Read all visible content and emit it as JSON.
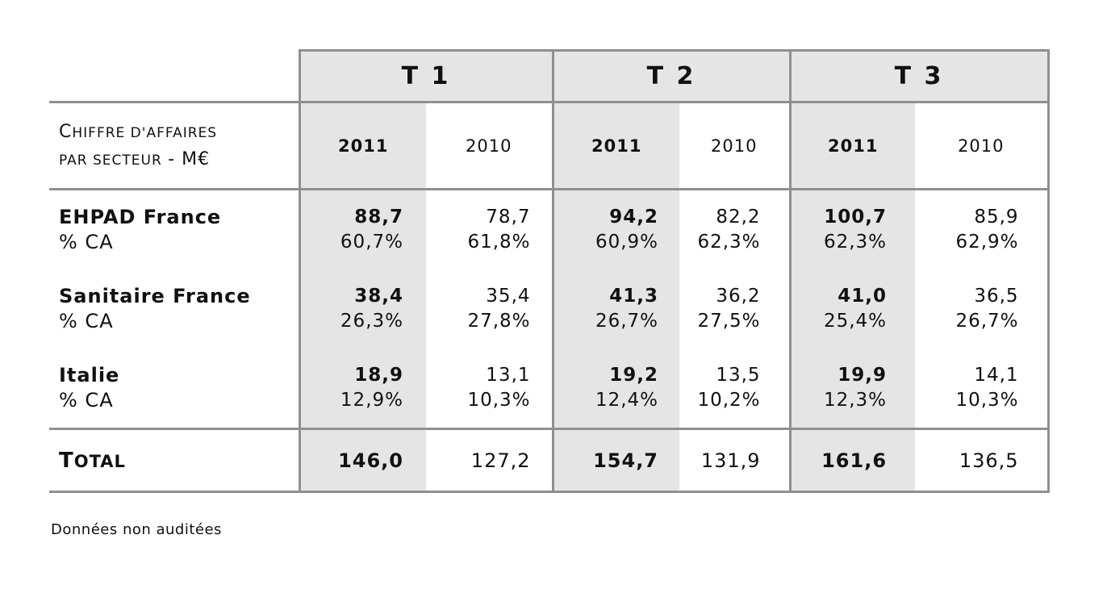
{
  "table": {
    "quarters": [
      "T 1",
      "T 2",
      "T 3"
    ],
    "subtitle": {
      "c1": "C",
      "rest1": "HIFFRE D'AFFAIRES",
      "line2": "PAR SECTEUR",
      "unit": "- M€"
    },
    "years": {
      "current": "2011",
      "previous": "2010"
    },
    "rows": [
      {
        "name": "EHPAD France",
        "pct_label": "% CA",
        "values": [
          {
            "v2011": "88,7",
            "p2011": "60,7%",
            "v2010": "78,7",
            "p2010": "61,8%"
          },
          {
            "v2011": "94,2",
            "p2011": "60,9%",
            "v2010": "82,2",
            "p2010": "62,3%"
          },
          {
            "v2011": "100,7",
            "p2011": "62,3%",
            "v2010": "85,9",
            "p2010": "62,9%"
          }
        ]
      },
      {
        "name": "Sanitaire France",
        "pct_label": "% CA",
        "values": [
          {
            "v2011": "38,4",
            "p2011": "26,3%",
            "v2010": "35,4",
            "p2010": "27,8%"
          },
          {
            "v2011": "41,3",
            "p2011": "26,7%",
            "v2010": "36,2",
            "p2010": "27,5%"
          },
          {
            "v2011": "41,0",
            "p2011": "25,4%",
            "v2010": "36,5",
            "p2010": "26,7%"
          }
        ]
      },
      {
        "name": "Italie",
        "pct_label": "% CA",
        "values": [
          {
            "v2011": "18,9",
            "p2011": "12,9%",
            "v2010": "13,1",
            "p2010": "10,3%"
          },
          {
            "v2011": "19,2",
            "p2011": "12,4%",
            "v2010": "13,5",
            "p2010": "10,2%"
          },
          {
            "v2011": "19,9",
            "p2011": "12,3%",
            "v2010": "14,1",
            "p2010": "10,3%"
          }
        ]
      }
    ],
    "total": {
      "label_first": "T",
      "label_rest": "OTAL",
      "values": [
        {
          "v2011": "146,0",
          "v2010": "127,2"
        },
        {
          "v2011": "154,7",
          "v2010": "131,9"
        },
        {
          "v2011": "161,6",
          "v2010": "136,5"
        }
      ]
    }
  },
  "footnote": "Données non auditées"
}
